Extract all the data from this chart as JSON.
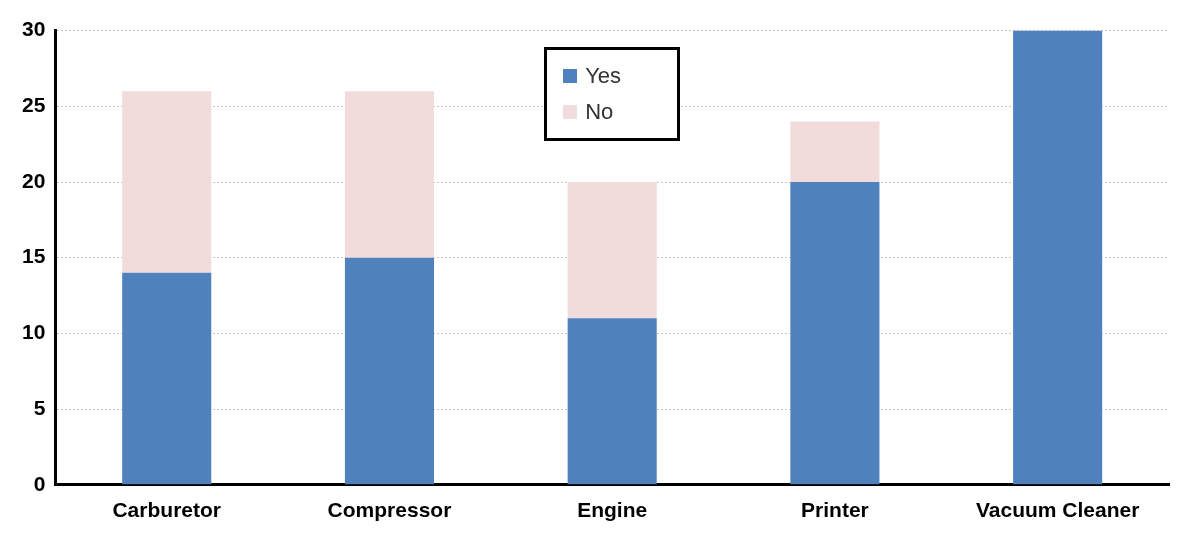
{
  "chart_data": {
    "type": "bar",
    "stacked": true,
    "categories": [
      "Carburetor",
      "Compressor",
      "Engine",
      "Printer",
      "Vacuum Cleaner"
    ],
    "series": [
      {
        "name": "Yes",
        "color": "#4f81bd",
        "values": [
          14,
          15,
          11,
          20,
          30
        ]
      },
      {
        "name": "No",
        "color": "#f2dcdb",
        "values": [
          12,
          11,
          9,
          4,
          0
        ]
      }
    ],
    "ylim": [
      0,
      30
    ],
    "yticks": [
      0,
      5,
      10,
      15,
      20,
      25,
      30
    ],
    "grid": "y",
    "legend": "top"
  }
}
